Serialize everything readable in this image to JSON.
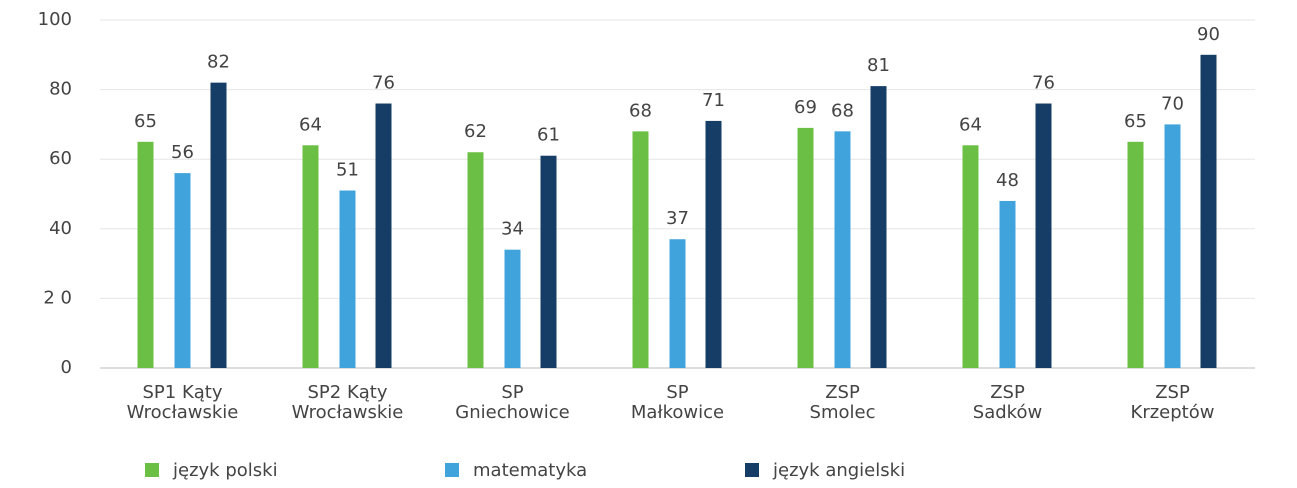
{
  "chart_data": {
    "type": "bar",
    "categories": [
      "SP1 Kąty Wrocławskie",
      "SP2 Kąty Wrocławskie",
      "SP Gniechowice",
      "SP Małkowice",
      "ZSP Smolec",
      "ZSP Sadków",
      "ZSP Krzeptów"
    ],
    "series": [
      {
        "name": "język polski",
        "color": "#6cbf45",
        "values": [
          65,
          64,
          62,
          68,
          69,
          64,
          65
        ]
      },
      {
        "name": "matematyka",
        "color": "#40a3dc",
        "values": [
          56,
          51,
          34,
          37,
          68,
          48,
          70
        ]
      },
      {
        "name": "język angielski",
        "color": "#163d66",
        "values": [
          82,
          76,
          61,
          71,
          81,
          76,
          90
        ]
      }
    ],
    "ylim": [
      0,
      100
    ],
    "yticks": [
      0,
      {
        "value": 20,
        "label": "2 0"
      },
      40,
      60,
      80,
      100
    ],
    "grid": true,
    "legend": "bottom"
  }
}
